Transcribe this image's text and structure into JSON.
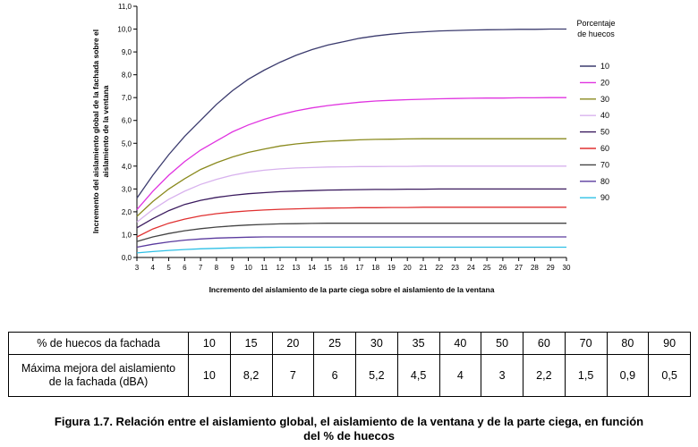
{
  "chart_data": {
    "type": "line",
    "title": "",
    "xlabel": "Incremento del aislamiento de la parte ciega sobre el aislamiento de la ventana",
    "ylabel_lines": [
      "Incremento del aislamiento global de la fachada sobre el",
      "aislamiento de la ventana"
    ],
    "xlim": [
      3,
      30
    ],
    "ylim": [
      0,
      11
    ],
    "x_ticks": [
      3,
      4,
      5,
      6,
      7,
      8,
      9,
      10,
      11,
      12,
      13,
      14,
      15,
      16,
      17,
      18,
      19,
      20,
      21,
      22,
      23,
      24,
      25,
      26,
      27,
      28,
      29,
      30
    ],
    "y_ticks": [
      "0,0",
      "1,0",
      "2,0",
      "3,0",
      "4,0",
      "5,0",
      "6,0",
      "7,0",
      "8,0",
      "9,0",
      "10,0",
      "11,0"
    ],
    "grid": false,
    "legend_title_lines": [
      "Porcentaje",
      "de huecos"
    ],
    "legend_position": "right",
    "x": [
      3,
      4,
      5,
      6,
      7,
      8,
      9,
      10,
      11,
      12,
      13,
      14,
      15,
      16,
      17,
      18,
      19,
      20,
      21,
      22,
      23,
      24,
      25,
      26,
      27,
      28,
      29,
      30
    ],
    "series": [
      {
        "name": "10",
        "color": "#3b3b6e",
        "values": [
          2.6,
          3.6,
          4.5,
          5.3,
          6.0,
          6.7,
          7.3,
          7.8,
          8.2,
          8.55,
          8.85,
          9.1,
          9.3,
          9.45,
          9.6,
          9.7,
          9.78,
          9.84,
          9.88,
          9.92,
          9.94,
          9.96,
          9.97,
          9.98,
          9.99,
          9.99,
          10.0,
          10.0
        ]
      },
      {
        "name": "20",
        "color": "#e033e0",
        "values": [
          2.1,
          2.9,
          3.6,
          4.2,
          4.7,
          5.1,
          5.5,
          5.8,
          6.05,
          6.25,
          6.42,
          6.55,
          6.65,
          6.73,
          6.8,
          6.85,
          6.88,
          6.91,
          6.93,
          6.95,
          6.96,
          6.97,
          6.98,
          6.98,
          6.99,
          6.99,
          7.0,
          7.0
        ]
      },
      {
        "name": "30",
        "color": "#8a8a1e",
        "values": [
          1.8,
          2.45,
          3.0,
          3.45,
          3.85,
          4.15,
          4.4,
          4.6,
          4.75,
          4.88,
          4.97,
          5.04,
          5.09,
          5.12,
          5.15,
          5.17,
          5.18,
          5.19,
          5.2,
          5.2,
          5.2,
          5.2,
          5.2,
          5.2,
          5.2,
          5.2,
          5.2,
          5.2
        ]
      },
      {
        "name": "40",
        "color": "#d8b2ee",
        "values": [
          1.55,
          2.1,
          2.55,
          2.9,
          3.2,
          3.42,
          3.6,
          3.73,
          3.82,
          3.88,
          3.92,
          3.94,
          3.96,
          3.97,
          3.98,
          3.98,
          3.99,
          3.99,
          4.0,
          4.0,
          4.0,
          4.0,
          4.0,
          4.0,
          4.0,
          4.0,
          4.0,
          4.0
        ]
      },
      {
        "name": "50",
        "color": "#3a1a5e",
        "values": [
          1.3,
          1.7,
          2.05,
          2.32,
          2.5,
          2.63,
          2.72,
          2.79,
          2.84,
          2.88,
          2.91,
          2.93,
          2.95,
          2.96,
          2.97,
          2.98,
          2.98,
          2.99,
          2.99,
          3.0,
          3.0,
          3.0,
          3.0,
          3.0,
          3.0,
          3.0,
          3.0,
          3.0
        ]
      },
      {
        "name": "60",
        "color": "#e03030",
        "values": [
          0.9,
          1.25,
          1.5,
          1.68,
          1.82,
          1.92,
          1.99,
          2.04,
          2.08,
          2.11,
          2.13,
          2.15,
          2.16,
          2.17,
          2.18,
          2.18,
          2.19,
          2.19,
          2.2,
          2.2,
          2.2,
          2.2,
          2.2,
          2.2,
          2.2,
          2.2,
          2.2,
          2.2
        ]
      },
      {
        "name": "70",
        "color": "#444444",
        "values": [
          0.7,
          0.9,
          1.05,
          1.17,
          1.26,
          1.33,
          1.38,
          1.42,
          1.45,
          1.47,
          1.48,
          1.49,
          1.5,
          1.5,
          1.5,
          1.5,
          1.5,
          1.5,
          1.5,
          1.5,
          1.5,
          1.5,
          1.5,
          1.5,
          1.5,
          1.5,
          1.5,
          1.5
        ]
      },
      {
        "name": "80",
        "color": "#5a3a9e",
        "values": [
          0.45,
          0.58,
          0.68,
          0.76,
          0.81,
          0.85,
          0.87,
          0.89,
          0.9,
          0.9,
          0.9,
          0.9,
          0.9,
          0.9,
          0.9,
          0.9,
          0.9,
          0.9,
          0.9,
          0.9,
          0.9,
          0.9,
          0.9,
          0.9,
          0.9,
          0.9,
          0.9,
          0.9
        ]
      },
      {
        "name": "90",
        "color": "#2ec0e6",
        "values": [
          0.2,
          0.26,
          0.31,
          0.35,
          0.38,
          0.4,
          0.42,
          0.43,
          0.44,
          0.45,
          0.45,
          0.45,
          0.45,
          0.45,
          0.45,
          0.45,
          0.45,
          0.45,
          0.45,
          0.45,
          0.45,
          0.45,
          0.45,
          0.45,
          0.45,
          0.45,
          0.45,
          0.45
        ]
      }
    ]
  },
  "table": {
    "row1_header": "% de huecos da fachada",
    "row1_values": [
      "10",
      "15",
      "20",
      "25",
      "30",
      "35",
      "40",
      "50",
      "60",
      "70",
      "80",
      "90"
    ],
    "row2_header_lines": [
      "Máxima mejora del aislamiento",
      "de la fachada (dBA)"
    ],
    "row2_values": [
      "10",
      "8,2",
      "7",
      "6",
      "5,2",
      "4,5",
      "4",
      "3",
      "2,2",
      "1,5",
      "0,9",
      "0,5"
    ]
  },
  "caption_lines": [
    "Figura 1.7. Relación entre el aislamiento global, el aislamiento de la ventana y de la parte ciega, en función",
    "del % de huecos"
  ]
}
